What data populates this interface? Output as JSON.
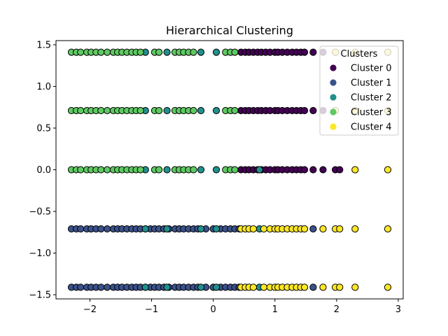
{
  "chart_data": {
    "type": "scatter",
    "title": "Hierarchical Clustering",
    "xlabel": "",
    "ylabel": "",
    "xlim": [
      -2.55,
      3.08
    ],
    "ylim": [
      -1.55,
      1.55
    ],
    "xticks": [
      -2,
      -1,
      0,
      1,
      2,
      3
    ],
    "xtick_labels": [
      "−2",
      "−1",
      "0",
      "1",
      "2",
      "3"
    ],
    "yticks": [
      -1.5,
      -1.0,
      -0.5,
      0.0,
      0.5,
      1.0,
      1.5
    ],
    "ytick_labels": [
      "−1.5",
      "−1.0",
      "−0.5",
      "0.0",
      "0.5",
      "1.0",
      "1.5"
    ],
    "grid": false,
    "legend": {
      "title": "Clusters",
      "placement": "top-right"
    },
    "series": [
      {
        "name": "Cluster 0",
        "color": "#440154",
        "points": [
          [
            0.45,
            1.41
          ],
          [
            0.52,
            1.41
          ],
          [
            0.58,
            1.41
          ],
          [
            0.65,
            1.41
          ],
          [
            0.72,
            1.41
          ],
          [
            0.78,
            1.41
          ],
          [
            0.85,
            1.41
          ],
          [
            0.92,
            1.41
          ],
          [
            1.0,
            1.41
          ],
          [
            1.05,
            1.41
          ],
          [
            1.12,
            1.41
          ],
          [
            1.2,
            1.41
          ],
          [
            1.28,
            1.41
          ],
          [
            1.35,
            1.41
          ],
          [
            1.42,
            1.41
          ],
          [
            1.48,
            1.41
          ],
          [
            1.62,
            1.41
          ],
          [
            1.78,
            1.41
          ],
          [
            0.45,
            0.71
          ],
          [
            0.52,
            0.71
          ],
          [
            0.58,
            0.71
          ],
          [
            0.65,
            0.71
          ],
          [
            0.72,
            0.71
          ],
          [
            0.78,
            0.71
          ],
          [
            0.85,
            0.71
          ],
          [
            0.92,
            0.71
          ],
          [
            1.0,
            0.71
          ],
          [
            1.05,
            0.71
          ],
          [
            1.12,
            0.71
          ],
          [
            1.2,
            0.71
          ],
          [
            1.28,
            0.71
          ],
          [
            1.35,
            0.71
          ],
          [
            1.42,
            0.71
          ],
          [
            1.48,
            0.71
          ],
          [
            1.62,
            0.71
          ],
          [
            1.78,
            0.71
          ],
          [
            0.45,
            0.0
          ],
          [
            0.52,
            0.0
          ],
          [
            0.58,
            0.0
          ],
          [
            0.65,
            0.0
          ],
          [
            0.72,
            0.0
          ],
          [
            0.78,
            0.0
          ],
          [
            0.85,
            0.0
          ],
          [
            0.92,
            0.0
          ],
          [
            1.0,
            0.0
          ],
          [
            1.05,
            0.0
          ],
          [
            1.12,
            0.0
          ],
          [
            1.2,
            0.0
          ],
          [
            1.28,
            0.0
          ],
          [
            1.35,
            0.0
          ],
          [
            1.42,
            0.0
          ],
          [
            1.48,
            0.0
          ],
          [
            1.62,
            0.0
          ],
          [
            1.78,
            0.0
          ],
          [
            1.98,
            0.0
          ],
          [
            2.05,
            0.0
          ]
        ]
      },
      {
        "name": "Cluster 1",
        "color": "#3b528b",
        "points": [
          [
            -2.3,
            -0.71
          ],
          [
            -2.22,
            -0.71
          ],
          [
            -2.15,
            -0.71
          ],
          [
            -2.05,
            -0.71
          ],
          [
            -1.98,
            -0.71
          ],
          [
            -1.9,
            -0.71
          ],
          [
            -1.82,
            -0.71
          ],
          [
            -1.72,
            -0.71
          ],
          [
            -1.62,
            -0.71
          ],
          [
            -1.55,
            -0.71
          ],
          [
            -1.48,
            -0.71
          ],
          [
            -1.4,
            -0.71
          ],
          [
            -1.32,
            -0.71
          ],
          [
            -1.25,
            -0.71
          ],
          [
            -1.18,
            -0.71
          ],
          [
            -1.1,
            -0.71
          ],
          [
            -1.02,
            -0.71
          ],
          [
            -0.95,
            -0.71
          ],
          [
            -0.88,
            -0.71
          ],
          [
            -0.8,
            -0.71
          ],
          [
            -0.72,
            -0.71
          ],
          [
            -0.62,
            -0.71
          ],
          [
            -0.55,
            -0.71
          ],
          [
            -0.48,
            -0.71
          ],
          [
            -0.4,
            -0.71
          ],
          [
            -0.32,
            -0.71
          ],
          [
            -0.25,
            -0.71
          ],
          [
            -0.12,
            -0.71
          ],
          [
            0.0,
            -0.71
          ],
          [
            0.12,
            -0.71
          ],
          [
            0.2,
            -0.71
          ],
          [
            0.28,
            -0.71
          ],
          [
            0.35,
            -0.71
          ],
          [
            0.42,
            -0.71
          ],
          [
            1.62,
            -0.71
          ],
          [
            -2.3,
            -1.41
          ],
          [
            -2.22,
            -1.41
          ],
          [
            -2.15,
            -1.41
          ],
          [
            -2.05,
            -1.41
          ],
          [
            -1.98,
            -1.41
          ],
          [
            -1.9,
            -1.41
          ],
          [
            -1.82,
            -1.41
          ],
          [
            -1.72,
            -1.41
          ],
          [
            -1.62,
            -1.41
          ],
          [
            -1.55,
            -1.41
          ],
          [
            -1.48,
            -1.41
          ],
          [
            -1.4,
            -1.41
          ],
          [
            -1.32,
            -1.41
          ],
          [
            -1.25,
            -1.41
          ],
          [
            -1.18,
            -1.41
          ],
          [
            -1.1,
            -1.41
          ],
          [
            -1.02,
            -1.41
          ],
          [
            -0.95,
            -1.41
          ],
          [
            -0.88,
            -1.41
          ],
          [
            -0.8,
            -1.41
          ],
          [
            -0.72,
            -1.41
          ],
          [
            -0.62,
            -1.41
          ],
          [
            -0.55,
            -1.41
          ],
          [
            -0.48,
            -1.41
          ],
          [
            -0.4,
            -1.41
          ],
          [
            -0.32,
            -1.41
          ],
          [
            -0.25,
            -1.41
          ],
          [
            -0.12,
            -1.41
          ],
          [
            0.0,
            -1.41
          ],
          [
            0.12,
            -1.41
          ],
          [
            0.2,
            -1.41
          ],
          [
            0.28,
            -1.41
          ],
          [
            0.35,
            -1.41
          ],
          [
            0.42,
            -1.41
          ],
          [
            1.62,
            -1.41
          ]
        ]
      },
      {
        "name": "Cluster 2",
        "color": "#21918c",
        "points": [
          [
            -1.1,
            1.41
          ],
          [
            -0.75,
            1.41
          ],
          [
            -0.2,
            1.41
          ],
          [
            0.05,
            1.41
          ],
          [
            -1.1,
            0.71
          ],
          [
            -0.75,
            0.71
          ],
          [
            -0.2,
            0.71
          ],
          [
            0.05,
            0.71
          ],
          [
            -1.1,
            0.0
          ],
          [
            -0.75,
            0.0
          ],
          [
            -0.2,
            0.0
          ],
          [
            0.05,
            0.0
          ],
          [
            0.75,
            0.0
          ],
          [
            -1.1,
            -0.71
          ],
          [
            -0.75,
            -0.71
          ],
          [
            -0.2,
            -0.71
          ],
          [
            0.05,
            -0.71
          ],
          [
            0.75,
            -0.71
          ],
          [
            -1.1,
            -1.41
          ],
          [
            -0.75,
            -1.41
          ],
          [
            -0.2,
            -1.41
          ],
          [
            0.05,
            -1.41
          ],
          [
            0.75,
            -1.41
          ]
        ]
      },
      {
        "name": "Cluster 3",
        "color": "#5ec962",
        "points": [
          [
            -2.3,
            1.41
          ],
          [
            -2.22,
            1.41
          ],
          [
            -2.15,
            1.41
          ],
          [
            -2.05,
            1.41
          ],
          [
            -1.98,
            1.41
          ],
          [
            -1.9,
            1.41
          ],
          [
            -1.82,
            1.41
          ],
          [
            -1.72,
            1.41
          ],
          [
            -1.62,
            1.41
          ],
          [
            -1.55,
            1.41
          ],
          [
            -1.48,
            1.41
          ],
          [
            -1.4,
            1.41
          ],
          [
            -1.32,
            1.41
          ],
          [
            -1.25,
            1.41
          ],
          [
            -1.18,
            1.41
          ],
          [
            -0.95,
            1.41
          ],
          [
            -0.88,
            1.41
          ],
          [
            -0.62,
            1.41
          ],
          [
            -0.55,
            1.41
          ],
          [
            -0.48,
            1.41
          ],
          [
            -0.4,
            1.41
          ],
          [
            -0.32,
            1.41
          ],
          [
            0.2,
            1.41
          ],
          [
            0.28,
            1.41
          ],
          [
            0.35,
            1.41
          ],
          [
            -2.3,
            0.71
          ],
          [
            -2.22,
            0.71
          ],
          [
            -2.15,
            0.71
          ],
          [
            -2.05,
            0.71
          ],
          [
            -1.98,
            0.71
          ],
          [
            -1.9,
            0.71
          ],
          [
            -1.82,
            0.71
          ],
          [
            -1.72,
            0.71
          ],
          [
            -1.62,
            0.71
          ],
          [
            -1.55,
            0.71
          ],
          [
            -1.48,
            0.71
          ],
          [
            -1.4,
            0.71
          ],
          [
            -1.32,
            0.71
          ],
          [
            -1.25,
            0.71
          ],
          [
            -1.18,
            0.71
          ],
          [
            -0.95,
            0.71
          ],
          [
            -0.88,
            0.71
          ],
          [
            -0.62,
            0.71
          ],
          [
            -0.55,
            0.71
          ],
          [
            -0.48,
            0.71
          ],
          [
            -0.4,
            0.71
          ],
          [
            -0.32,
            0.71
          ],
          [
            0.2,
            0.71
          ],
          [
            0.28,
            0.71
          ],
          [
            0.35,
            0.71
          ],
          [
            -2.3,
            0.0
          ],
          [
            -2.22,
            0.0
          ],
          [
            -2.15,
            0.0
          ],
          [
            -2.05,
            0.0
          ],
          [
            -1.98,
            0.0
          ],
          [
            -1.9,
            0.0
          ],
          [
            -1.82,
            0.0
          ],
          [
            -1.72,
            0.0
          ],
          [
            -1.62,
            0.0
          ],
          [
            -1.55,
            0.0
          ],
          [
            -1.48,
            0.0
          ],
          [
            -1.4,
            0.0
          ],
          [
            -1.32,
            0.0
          ],
          [
            -1.25,
            0.0
          ],
          [
            -1.18,
            0.0
          ],
          [
            -0.95,
            0.0
          ],
          [
            -0.88,
            0.0
          ],
          [
            -0.62,
            0.0
          ],
          [
            -0.55,
            0.0
          ],
          [
            -0.48,
            0.0
          ],
          [
            -0.4,
            0.0
          ],
          [
            -0.32,
            0.0
          ],
          [
            0.2,
            0.0
          ],
          [
            0.28,
            0.0
          ],
          [
            0.35,
            0.0
          ]
        ]
      },
      {
        "name": "Cluster 4",
        "color": "#fde725",
        "points": [
          [
            0.45,
            -0.71
          ],
          [
            0.52,
            -0.71
          ],
          [
            0.58,
            -0.71
          ],
          [
            0.65,
            -0.71
          ],
          [
            0.82,
            -0.71
          ],
          [
            0.92,
            -0.71
          ],
          [
            1.0,
            -0.71
          ],
          [
            1.05,
            -0.71
          ],
          [
            1.12,
            -0.71
          ],
          [
            1.2,
            -0.71
          ],
          [
            1.28,
            -0.71
          ],
          [
            1.35,
            -0.71
          ],
          [
            1.42,
            -0.71
          ],
          [
            1.48,
            -0.71
          ],
          [
            1.78,
            -0.71
          ],
          [
            1.98,
            -0.71
          ],
          [
            2.05,
            -0.71
          ],
          [
            2.3,
            -0.71
          ],
          [
            2.83,
            -0.71
          ],
          [
            0.45,
            -1.41
          ],
          [
            0.52,
            -1.41
          ],
          [
            0.58,
            -1.41
          ],
          [
            0.65,
            -1.41
          ],
          [
            0.82,
            -1.41
          ],
          [
            0.92,
            -1.41
          ],
          [
            1.0,
            -1.41
          ],
          [
            1.05,
            -1.41
          ],
          [
            1.12,
            -1.41
          ],
          [
            1.2,
            -1.41
          ],
          [
            1.28,
            -1.41
          ],
          [
            1.35,
            -1.41
          ],
          [
            1.42,
            -1.41
          ],
          [
            1.48,
            -1.41
          ],
          [
            1.78,
            -1.41
          ],
          [
            1.98,
            -1.41
          ],
          [
            2.05,
            -1.41
          ],
          [
            2.3,
            -1.41
          ],
          [
            2.83,
            -1.41
          ],
          [
            2.3,
            0.0
          ],
          [
            2.83,
            0.0
          ],
          [
            1.98,
            0.71
          ],
          [
            2.3,
            0.71
          ],
          [
            2.83,
            0.71
          ],
          [
            1.98,
            1.41
          ],
          [
            2.3,
            1.41
          ],
          [
            2.83,
            1.41
          ]
        ]
      }
    ]
  }
}
